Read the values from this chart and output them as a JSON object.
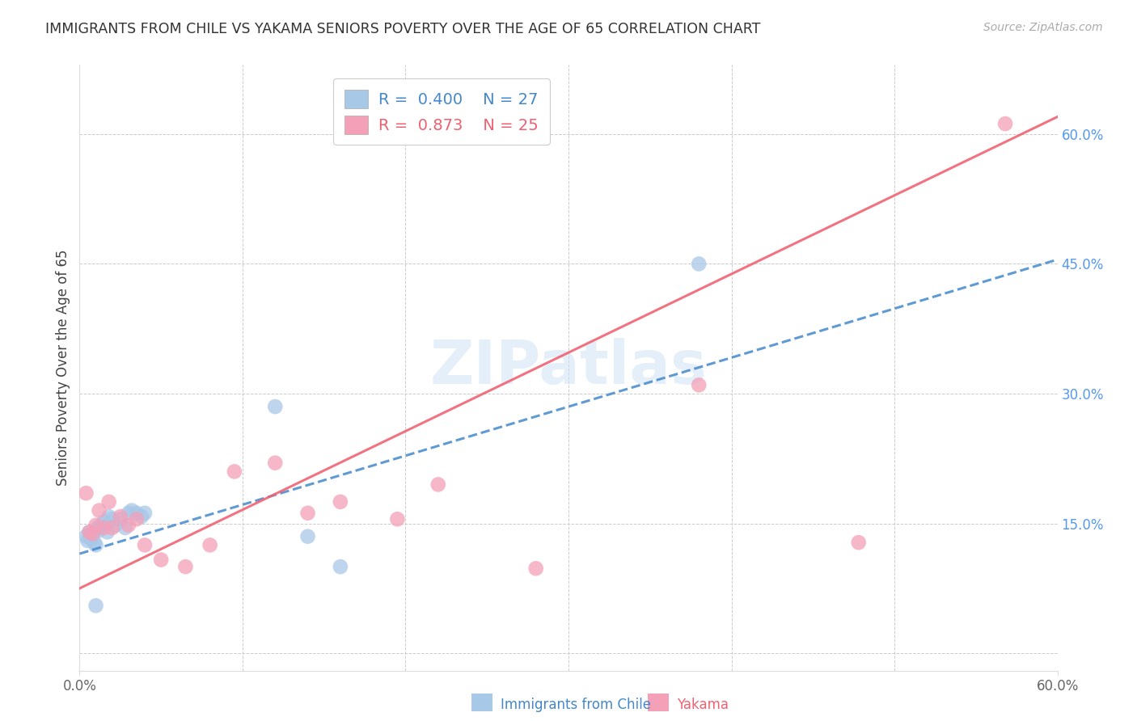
{
  "title": "IMMIGRANTS FROM CHILE VS YAKAMA SENIORS POVERTY OVER THE AGE OF 65 CORRELATION CHART",
  "source": "Source: ZipAtlas.com",
  "ylabel": "Seniors Poverty Over the Age of 65",
  "xlim": [
    0.0,
    0.6
  ],
  "ylim": [
    -0.02,
    0.68
  ],
  "blue_R": 0.4,
  "blue_N": 27,
  "pink_R": 0.873,
  "pink_N": 25,
  "blue_color": "#a8c8e8",
  "pink_color": "#f4a0b8",
  "blue_line_color": "#4488cc",
  "pink_line_color": "#f06070",
  "legend_blue_label": "Immigrants from Chile",
  "legend_pink_label": "Yakama",
  "watermark": "ZIPatlas",
  "blue_line_x0": 0.0,
  "blue_line_y0": 0.115,
  "blue_line_x1": 0.6,
  "blue_line_y1": 0.455,
  "pink_line_x0": 0.0,
  "pink_line_y0": 0.075,
  "pink_line_x1": 0.6,
  "pink_line_y1": 0.62,
  "blue_x": [
    0.004,
    0.005,
    0.006,
    0.007,
    0.008,
    0.009,
    0.01,
    0.011,
    0.012,
    0.013,
    0.015,
    0.017,
    0.018,
    0.02,
    0.022,
    0.025,
    0.028,
    0.03,
    0.032,
    0.035,
    0.038,
    0.04,
    0.12,
    0.14,
    0.16,
    0.38,
    0.01
  ],
  "blue_y": [
    0.135,
    0.13,
    0.14,
    0.132,
    0.138,
    0.128,
    0.125,
    0.145,
    0.142,
    0.148,
    0.152,
    0.14,
    0.158,
    0.155,
    0.148,
    0.155,
    0.145,
    0.162,
    0.165,
    0.162,
    0.158,
    0.162,
    0.285,
    0.135,
    0.1,
    0.45,
    0.055
  ],
  "pink_x": [
    0.004,
    0.006,
    0.008,
    0.01,
    0.012,
    0.015,
    0.018,
    0.02,
    0.025,
    0.03,
    0.035,
    0.04,
    0.05,
    0.065,
    0.08,
    0.095,
    0.12,
    0.14,
    0.16,
    0.195,
    0.22,
    0.28,
    0.38,
    0.478,
    0.568
  ],
  "pink_y": [
    0.185,
    0.14,
    0.138,
    0.148,
    0.165,
    0.145,
    0.175,
    0.145,
    0.158,
    0.148,
    0.155,
    0.125,
    0.108,
    0.1,
    0.125,
    0.21,
    0.22,
    0.162,
    0.175,
    0.155,
    0.195,
    0.098,
    0.31,
    0.128,
    0.612
  ],
  "grid_color": "#cccccc"
}
